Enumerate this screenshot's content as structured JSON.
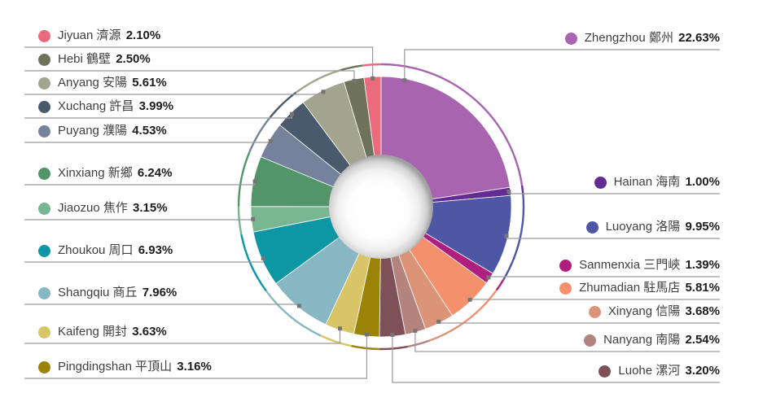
{
  "page": {
    "background": "#ffffff"
  },
  "chart_data": {
    "type": "pie",
    "subtype": "donut",
    "title": "",
    "unit": "%",
    "start_angle_deg": 0,
    "direction": "clockwise",
    "total": 100.0,
    "slices": [
      {
        "name": "Zhengzhou",
        "name_zh": "鄭州",
        "value": 22.63,
        "label": "22.63%",
        "color": "#a864af",
        "legend": "right"
      },
      {
        "name": "Hainan",
        "name_zh": "海南",
        "value": 1.0,
        "label": "1.00%",
        "color": "#632c92",
        "legend": "right"
      },
      {
        "name": "Luoyang",
        "name_zh": "洛陽",
        "value": 9.95,
        "label": "9.95%",
        "color": "#4d57a6",
        "legend": "right"
      },
      {
        "name": "Sanmenxia",
        "name_zh": "三門峽",
        "value": 1.39,
        "label": "1.39%",
        "color": "#b01f7f",
        "legend": "right"
      },
      {
        "name": "Zhumadian",
        "name_zh": "駐馬店",
        "value": 5.81,
        "label": "5.81%",
        "color": "#f4916c",
        "legend": "right"
      },
      {
        "name": "Xinyang",
        "name_zh": "信陽",
        "value": 3.68,
        "label": "3.68%",
        "color": "#dc9478",
        "legend": "right"
      },
      {
        "name": "Nanyang",
        "name_zh": "南陽",
        "value": 2.54,
        "label": "2.54%",
        "color": "#b3837e",
        "legend": "right"
      },
      {
        "name": "Luohe",
        "name_zh": "漯河",
        "value": 3.2,
        "label": "3.20%",
        "color": "#7e5158",
        "legend": "right"
      },
      {
        "name": "Pingdingshan",
        "name_zh": "平頂山",
        "value": 3.16,
        "label": "3.16%",
        "color": "#9a8306",
        "legend": "left"
      },
      {
        "name": "Kaifeng",
        "name_zh": "開封",
        "value": 3.63,
        "label": "3.63%",
        "color": "#d7c568",
        "legend": "left"
      },
      {
        "name": "Shangqiu",
        "name_zh": "商丘",
        "value": 7.96,
        "label": "7.96%",
        "color": "#87b7c3",
        "legend": "left"
      },
      {
        "name": "Zhoukou",
        "name_zh": "周口",
        "value": 6.93,
        "label": "6.93%",
        "color": "#0d96a3",
        "legend": "left"
      },
      {
        "name": "Jiaozuo",
        "name_zh": "焦作",
        "value": 3.15,
        "label": "3.15%",
        "color": "#78b591",
        "legend": "left"
      },
      {
        "name": "Xinxiang",
        "name_zh": "新鄉",
        "value": 6.24,
        "label": "6.24%",
        "color": "#539569",
        "legend": "left"
      },
      {
        "name": "Puyang",
        "name_zh": "濮陽",
        "value": 4.53,
        "label": "4.53%",
        "color": "#74839b",
        "legend": "left"
      },
      {
        "name": "Xuchang",
        "name_zh": "許昌",
        "value": 3.99,
        "label": "3.99%",
        "color": "#485a6c",
        "legend": "left"
      },
      {
        "name": "Anyang",
        "name_zh": "安陽",
        "value": 5.61,
        "label": "5.61%",
        "color": "#a3a48e",
        "legend": "left"
      },
      {
        "name": "Hebi",
        "name_zh": "鶴壁",
        "value": 2.5,
        "label": "2.50%",
        "color": "#6f725a",
        "legend": "left"
      },
      {
        "name": "Jiyuan",
        "name_zh": "濟源",
        "value": 2.1,
        "label": "2.10%",
        "color": "#ea6a7e",
        "legend": "left"
      }
    ],
    "legend_left_order": [
      "Jiyuan",
      "Hebi",
      "Anyang",
      "Xuchang",
      "Puyang",
      "Xinxiang",
      "Jiaozuo",
      "Zhoukou",
      "Shangqiu",
      "Kaifeng",
      "Pingdingshan"
    ],
    "legend_right_order": [
      "Zhengzhou",
      "Hainan",
      "Luoyang",
      "Sanmenxia",
      "Zhumadian",
      "Xinyang",
      "Nanyang",
      "Luohe"
    ],
    "styles": {
      "leader_line_color": "#9a9a9a",
      "leader_dot_color": "#757575",
      "slice_stroke": "#ffffff",
      "legend_text_color": "#3f3f3f",
      "legend_pct_color": "#1d1d1d"
    }
  }
}
